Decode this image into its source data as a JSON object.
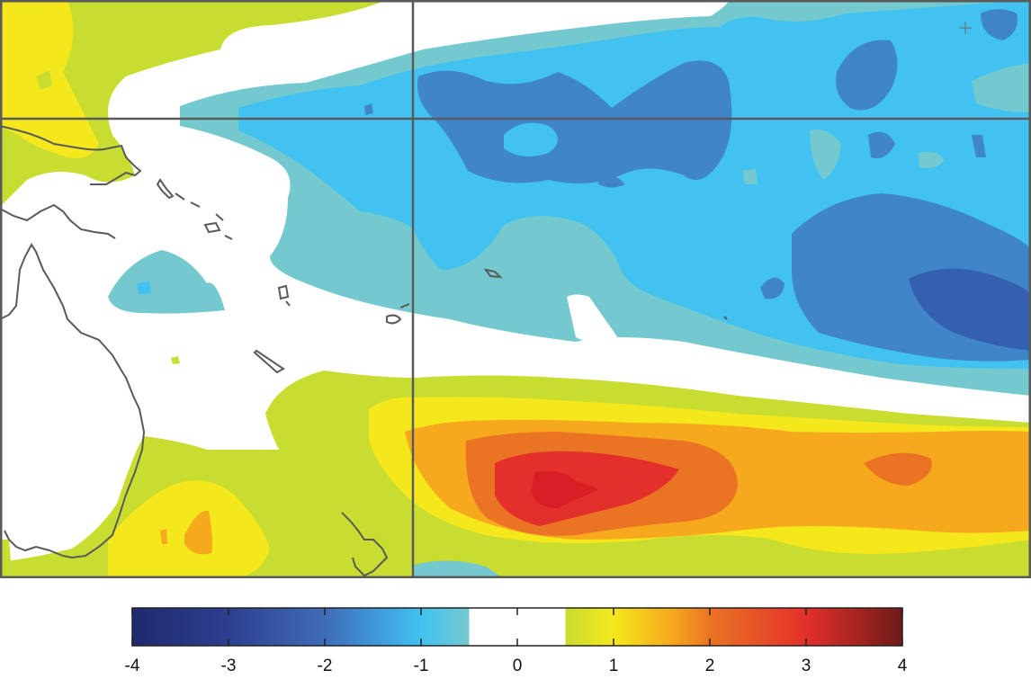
{
  "map": {
    "region": "southwest-pacific",
    "gridlines": "on",
    "coastline_color": "#5a5a5a",
    "border_color": "#5a5a5a"
  },
  "colorbar": {
    "orientation": "horizontal",
    "range": [
      -4,
      4
    ],
    "ticks": [
      -4,
      -3,
      -2,
      -1,
      0,
      1,
      2,
      3,
      4
    ],
    "tick_labels": [
      "-4",
      "-3",
      "-2",
      "-1",
      "0",
      "1",
      "2",
      "3",
      "4"
    ],
    "neutral_band": [
      -0.5,
      0.5
    ],
    "colors": {
      "neg_4": "#1f2a6e",
      "neg_2": "#3f85c8",
      "neg_1_5": "#41c2f0",
      "neg_1": "#74c9cf",
      "neutral": "#ffffff",
      "pos_0_5": "#c9dc30",
      "pos_1": "#f4e81c",
      "pos_1_5": "#f6a91d",
      "pos_2": "#ea7424",
      "pos_3": "#e3302a",
      "pos_4": "#6e1a1a"
    }
  }
}
